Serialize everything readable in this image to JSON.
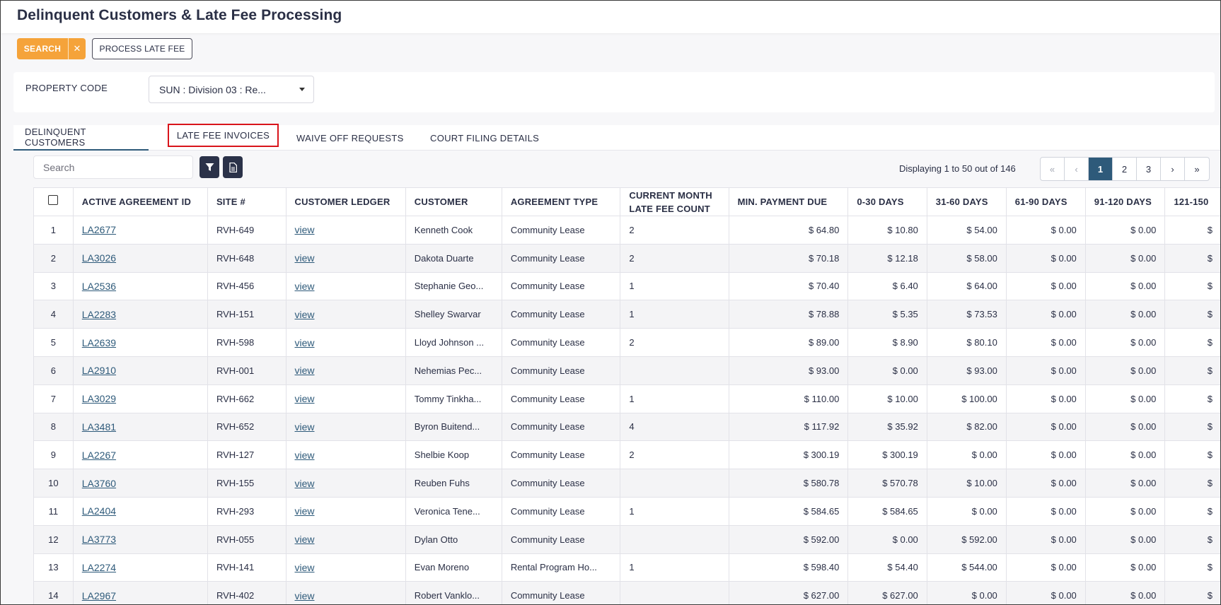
{
  "page": {
    "title": "Delinquent Customers & Late Fee Processing"
  },
  "actions": {
    "search_label": "SEARCH",
    "clear_label": "✕",
    "process_label": "PROCESS LATE FEE"
  },
  "filters": {
    "property_code_label": "PROPERTY CODE",
    "property_code_value": "SUN : Division 03 : Re..."
  },
  "tabs": [
    {
      "label": "DELINQUENT CUSTOMERS",
      "active": true
    },
    {
      "label": "LATE FEE INVOICES",
      "highlighted": true
    },
    {
      "label": "WAIVE OFF REQUESTS"
    },
    {
      "label": "COURT FILING DETAILS"
    }
  ],
  "toolbar": {
    "search_placeholder": "Search",
    "filter_icon": "filter-icon",
    "export_icon": "document-icon"
  },
  "pagination": {
    "display_text": "Displaying 1 to 50 out of 146",
    "first": "«",
    "prev": "‹",
    "pages": [
      "1",
      "2",
      "3"
    ],
    "current": "1",
    "next": "›",
    "last": "»"
  },
  "table": {
    "columns": [
      "ACTIVE AGREEMENT ID",
      "SITE #",
      "CUSTOMER LEDGER",
      "CUSTOMER",
      "AGREEMENT TYPE",
      "CURRENT MONTH LATE FEE COUNT",
      "MIN. PAYMENT DUE",
      "0-30 DAYS",
      "31-60 DAYS",
      "61-90 DAYS",
      "91-120 DAYS",
      "121-150"
    ],
    "rows": [
      [
        "1",
        "LA2677",
        "RVH-649",
        "view",
        "Kenneth Cook",
        "Community Lease",
        "2",
        "$ 64.80",
        "$ 10.80",
        "$ 54.00",
        "$ 0.00",
        "$ 0.00",
        "$"
      ],
      [
        "2",
        "LA3026",
        "RVH-648",
        "view",
        "Dakota Duarte",
        "Community Lease",
        "2",
        "$ 70.18",
        "$ 12.18",
        "$ 58.00",
        "$ 0.00",
        "$ 0.00",
        "$"
      ],
      [
        "3",
        "LA2536",
        "RVH-456",
        "view",
        "Stephanie Geo...",
        "Community Lease",
        "1",
        "$ 70.40",
        "$ 6.40",
        "$ 64.00",
        "$ 0.00",
        "$ 0.00",
        "$"
      ],
      [
        "4",
        "LA2283",
        "RVH-151",
        "view",
        "Shelley Swarvar",
        "Community Lease",
        "1",
        "$ 78.88",
        "$ 5.35",
        "$ 73.53",
        "$ 0.00",
        "$ 0.00",
        "$"
      ],
      [
        "5",
        "LA2639",
        "RVH-598",
        "view",
        "Lloyd Johnson ...",
        "Community Lease",
        "2",
        "$ 89.00",
        "$ 8.90",
        "$ 80.10",
        "$ 0.00",
        "$ 0.00",
        "$"
      ],
      [
        "6",
        "LA2910",
        "RVH-001",
        "view",
        "Nehemias Pec...",
        "Community Lease",
        "",
        "$ 93.00",
        "$ 0.00",
        "$ 93.00",
        "$ 0.00",
        "$ 0.00",
        "$"
      ],
      [
        "7",
        "LA3029",
        "RVH-662",
        "view",
        "Tommy Tinkha...",
        "Community Lease",
        "1",
        "$ 110.00",
        "$ 10.00",
        "$ 100.00",
        "$ 0.00",
        "$ 0.00",
        "$"
      ],
      [
        "8",
        "LA3481",
        "RVH-652",
        "view",
        "Byron Buitend...",
        "Community Lease",
        "4",
        "$ 117.92",
        "$ 35.92",
        "$ 82.00",
        "$ 0.00",
        "$ 0.00",
        "$"
      ],
      [
        "9",
        "LA2267",
        "RVH-127",
        "view",
        "Shelbie Koop",
        "Community Lease",
        "2",
        "$ 300.19",
        "$ 300.19",
        "$ 0.00",
        "$ 0.00",
        "$ 0.00",
        "$"
      ],
      [
        "10",
        "LA3760",
        "RVH-155",
        "view",
        "Reuben Fuhs",
        "Community Lease",
        "",
        "$ 580.78",
        "$ 570.78",
        "$ 10.00",
        "$ 0.00",
        "$ 0.00",
        "$"
      ],
      [
        "11",
        "LA2404",
        "RVH-293",
        "view",
        "Veronica Tene...",
        "Community Lease",
        "1",
        "$ 584.65",
        "$ 584.65",
        "$ 0.00",
        "$ 0.00",
        "$ 0.00",
        "$"
      ],
      [
        "12",
        "LA3773",
        "RVH-055",
        "view",
        "Dylan Otto",
        "Community Lease",
        "",
        "$ 592.00",
        "$ 0.00",
        "$ 592.00",
        "$ 0.00",
        "$ 0.00",
        "$"
      ],
      [
        "13",
        "LA2274",
        "RVH-141",
        "view",
        "Evan Moreno",
        "Rental Program Ho...",
        "1",
        "$ 598.40",
        "$ 54.40",
        "$ 544.00",
        "$ 0.00",
        "$ 0.00",
        "$"
      ],
      [
        "14",
        "LA2967",
        "RVH-402",
        "view",
        "Robert Vanklo...",
        "Community Lease",
        "",
        "$ 627.00",
        "$ 627.00",
        "$ 0.00",
        "$ 0.00",
        "$ 0.00",
        "$"
      ]
    ]
  },
  "colors": {
    "accent": "#f5a33a",
    "primary": "#2e5a7a",
    "dark": "#2b3249",
    "highlight_border": "#d9141b"
  }
}
